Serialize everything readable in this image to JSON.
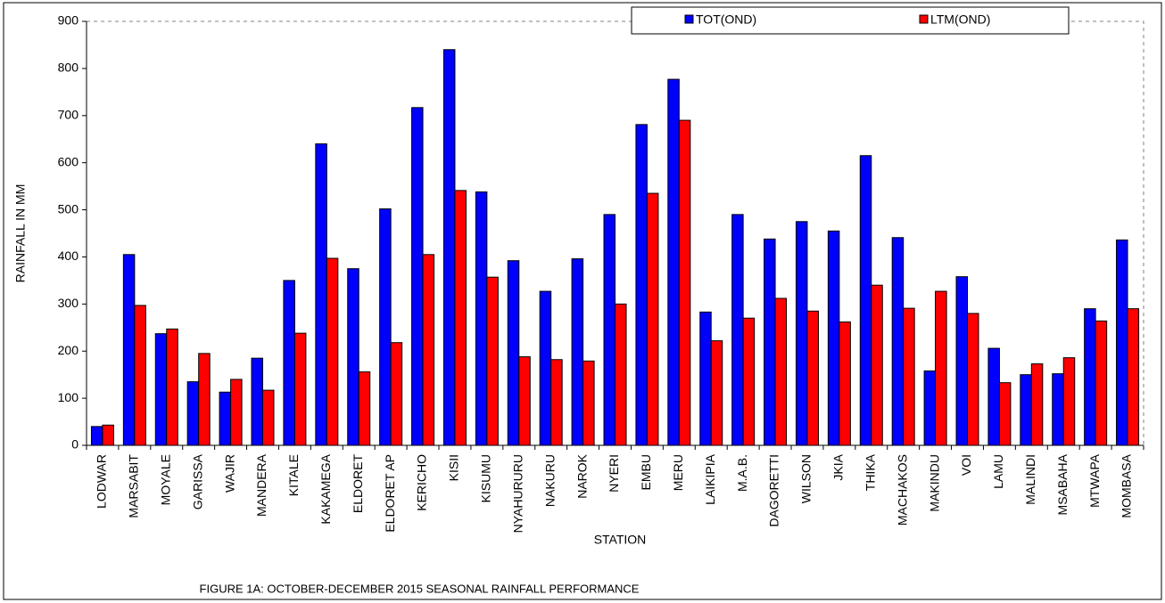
{
  "chart_data": {
    "type": "bar",
    "title": "FIGURE 1A: OCTOBER-DECEMBER 2015 SEASONAL RAINFALL PERFORMANCE",
    "x_label": "STATION",
    "y_label": "RAINFALL IN MM",
    "categories": [
      "LODWAR",
      "MARSABIT",
      "MOYALE",
      "GARISSA",
      "WAJIR",
      "MANDERA",
      "KITALE",
      "KAKAMEGA",
      "ELDORET",
      "ELDORET AP",
      "KERICHO",
      "KISII",
      "KISUMU",
      "NYAHURURU",
      "NAKURU",
      "NAROK",
      "NYERI",
      "EMBU",
      "MERU",
      "LAIKIPIA",
      "M.A.B.",
      "DAGORETTI",
      "WILSON",
      "JKIA",
      "THIKA",
      "MACHAKOS",
      "MAKINDU",
      "VOI",
      "LAMU",
      "MALINDI",
      "MSABAHA",
      "MTWAPA",
      "MOMBASA"
    ],
    "series": [
      {
        "name": "TOT(OND)",
        "color": "#0000ff",
        "values": [
          40,
          405,
          237,
          135,
          113,
          185,
          350,
          640,
          375,
          502,
          717,
          840,
          538,
          392,
          327,
          396,
          490,
          681,
          777,
          283,
          490,
          438,
          475,
          455,
          615,
          441,
          158,
          358,
          206,
          150,
          152,
          290,
          436
        ]
      },
      {
        "name": "LTM(OND)",
        "color": "#ff0000",
        "values": [
          43,
          297,
          247,
          195,
          140,
          117,
          238,
          397,
          156,
          218,
          405,
          541,
          357,
          188,
          182,
          179,
          300,
          535,
          690,
          222,
          270,
          312,
          285,
          262,
          340,
          291,
          327,
          280,
          133,
          173,
          186,
          264,
          290
        ]
      }
    ],
    "ylim": [
      0,
      900
    ],
    "yticks": [
      0,
      100,
      200,
      300,
      400,
      500,
      600,
      700,
      800,
      900
    ],
    "grid": false,
    "legend": "top"
  }
}
